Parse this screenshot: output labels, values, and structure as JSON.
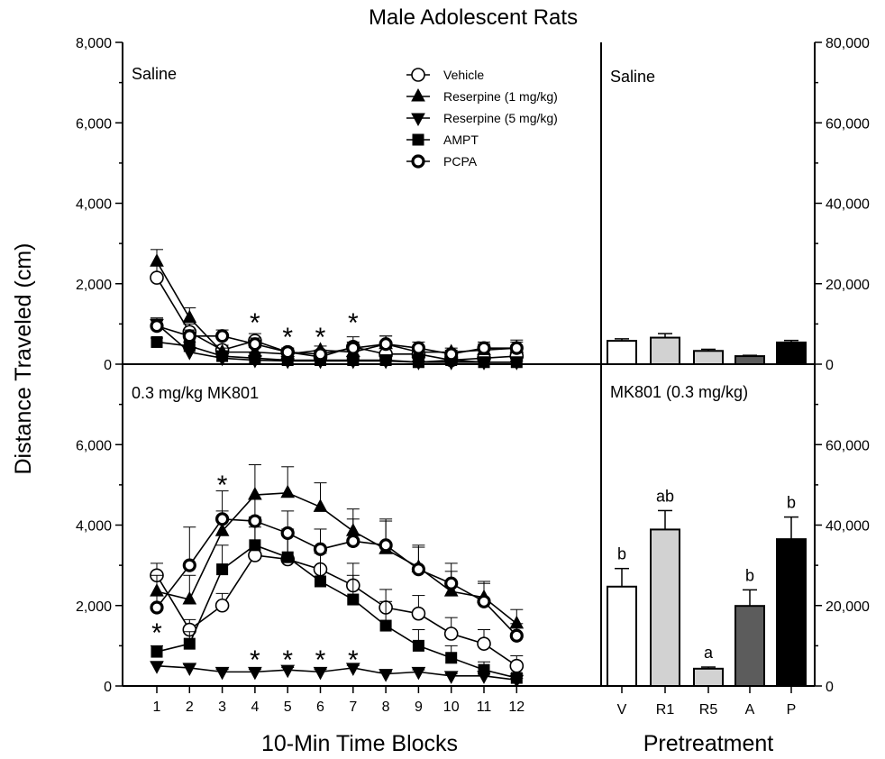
{
  "figure": {
    "title": "Male Adolescent Rats",
    "ylabel": "Distance Traveled (cm)",
    "xlabel_left": "10-Min Time Blocks",
    "xlabel_right": "Pretreatment",
    "left_ticks": [
      "0",
      "2,000",
      "4,000",
      "6,000",
      "8,000"
    ],
    "right_ticks": [
      "0",
      "20,000",
      "40,000",
      "60,000",
      "80,000"
    ],
    "left_ticks_lower": [
      "0",
      "2,000",
      "4,000",
      "6,000"
    ],
    "right_ticks_lower": [
      "0",
      "20,000",
      "40,000",
      "60,000"
    ],
    "time_blocks": [
      "1",
      "2",
      "3",
      "4",
      "5",
      "6",
      "7",
      "8",
      "9",
      "10",
      "11",
      "12"
    ],
    "pretreatment_labels": [
      "V",
      "R1",
      "R5",
      "A",
      "P"
    ],
    "panel_saline": "Saline",
    "panel_saline_right": "Saline",
    "panel_mk801": "0.3 mg/kg MK801",
    "panel_mk801_right": "MK801 (0.3 mg/kg)",
    "star_symbol": "*"
  },
  "legend": [
    {
      "name": "Vehicle",
      "marker": "open-circle"
    },
    {
      "name": "Reserpine (1 mg/kg)",
      "marker": "triangle-up"
    },
    {
      "name": "Reserpine (5 mg/kg)",
      "marker": "triangle-down"
    },
    {
      "name": "AMPT",
      "marker": "square"
    },
    {
      "name": "PCPA",
      "marker": "thick-open-circle"
    }
  ],
  "chart_data": [
    {
      "type": "line",
      "panel": "Saline",
      "x": [
        1,
        2,
        3,
        4,
        5,
        6,
        7,
        8,
        9,
        10,
        11,
        12
      ],
      "ylim": [
        0,
        4000
      ],
      "series": [
        {
          "name": "Vehicle",
          "values": [
            2150,
            800,
            350,
            580,
            300,
            180,
            430,
            250,
            250,
            100,
            150,
            200
          ],
          "err": [
            300,
            200,
            120,
            180,
            100,
            80,
            250,
            150,
            120,
            60,
            100,
            120
          ]
        },
        {
          "name": "Reserpine (1 mg/kg)",
          "values": [
            2550,
            1150,
            300,
            300,
            250,
            350,
            300,
            500,
            300,
            300,
            350,
            400
          ],
          "err": [
            300,
            250,
            100,
            120,
            80,
            100,
            100,
            200,
            150,
            100,
            150,
            200
          ]
        },
        {
          "name": "Reserpine (5 mg/kg)",
          "values": [
            1000,
            300,
            150,
            100,
            80,
            80,
            80,
            80,
            50,
            50,
            50,
            50
          ],
          "err": [
            120,
            80,
            50,
            40,
            40,
            40,
            40,
            40,
            30,
            30,
            30,
            30
          ]
        },
        {
          "name": "AMPT",
          "values": [
            550,
            450,
            200,
            150,
            100,
            100,
            100,
            100,
            50,
            100,
            50,
            50
          ],
          "err": [
            100,
            100,
            60,
            60,
            40,
            40,
            40,
            40,
            30,
            40,
            30,
            30
          ]
        },
        {
          "name": "PCPA",
          "values": [
            950,
            700,
            700,
            500,
            300,
            250,
            400,
            500,
            400,
            250,
            400,
            400
          ],
          "err": [
            200,
            150,
            150,
            150,
            100,
            100,
            150,
            200,
            150,
            100,
            150,
            150
          ]
        }
      ],
      "significance_marks_at": [
        4,
        5,
        6,
        7
      ]
    },
    {
      "type": "line",
      "panel": "0.3 mg/kg MK801",
      "x": [
        1,
        2,
        3,
        4,
        5,
        6,
        7,
        8,
        9,
        10,
        11,
        12
      ],
      "ylim": [
        0,
        8000
      ],
      "series": [
        {
          "name": "Vehicle",
          "values": [
            2750,
            1400,
            2000,
            3250,
            3150,
            2900,
            2500,
            1950,
            1800,
            1300,
            1050,
            500
          ],
          "err": [
            300,
            250,
            300,
            700,
            600,
            500,
            550,
            450,
            450,
            400,
            350,
            250
          ]
        },
        {
          "name": "Reserpine (1 mg/kg)",
          "values": [
            2350,
            2150,
            3850,
            4750,
            4800,
            4450,
            3850,
            3400,
            2950,
            2350,
            2200,
            1550
          ],
          "err": [
            400,
            600,
            500,
            750,
            650,
            600,
            550,
            700,
            550,
            500,
            400,
            350
          ]
        },
        {
          "name": "Reserpine (5 mg/kg)",
          "values": [
            500,
            450,
            350,
            350,
            400,
            350,
            450,
            300,
            350,
            250,
            250,
            150
          ],
          "err": [
            80,
            80,
            60,
            60,
            60,
            60,
            60,
            50,
            50,
            50,
            50,
            40
          ]
        },
        {
          "name": "AMPT",
          "values": [
            850,
            1050,
            2900,
            3500,
            3200,
            2600,
            2150,
            1500,
            1000,
            700,
            400,
            200
          ],
          "err": [
            150,
            300,
            600,
            700,
            700,
            700,
            600,
            600,
            400,
            300,
            200,
            100
          ]
        },
        {
          "name": "PCPA",
          "values": [
            1950,
            3000,
            4150,
            4100,
            3800,
            3400,
            3600,
            3500,
            2900,
            2550,
            2100,
            1250
          ],
          "err": [
            300,
            950,
            700,
            550,
            550,
            500,
            550,
            650,
            550,
            500,
            450,
            300
          ]
        }
      ],
      "significance_marks_at": [
        1,
        3,
        4,
        5,
        6,
        7
      ]
    },
    {
      "type": "bar",
      "panel": "Saline",
      "categories": [
        "V",
        "R1",
        "R5",
        "A",
        "P"
      ],
      "values": [
        5800,
        6600,
        3300,
        2000,
        5400
      ],
      "err": [
        500,
        1000,
        400,
        200,
        500
      ],
      "ylim": [
        0,
        40000
      ],
      "bar_colors": [
        "#ffffff",
        "#d2d2d2",
        "#d2d2d2",
        "#5c5c5c",
        "#000000"
      ]
    },
    {
      "type": "bar",
      "panel": "MK801 (0.3 mg/kg)",
      "categories": [
        "V",
        "R1",
        "R5",
        "A",
        "P"
      ],
      "values": [
        24700,
        38900,
        4300,
        19900,
        36500
      ],
      "err": [
        4500,
        4700,
        400,
        4000,
        5500
      ],
      "letters": [
        "b",
        "ab",
        "a",
        "b",
        "b"
      ],
      "ylim": [
        0,
        80000
      ],
      "bar_colors": [
        "#ffffff",
        "#d2d2d2",
        "#d2d2d2",
        "#5c5c5c",
        "#000000"
      ]
    }
  ]
}
